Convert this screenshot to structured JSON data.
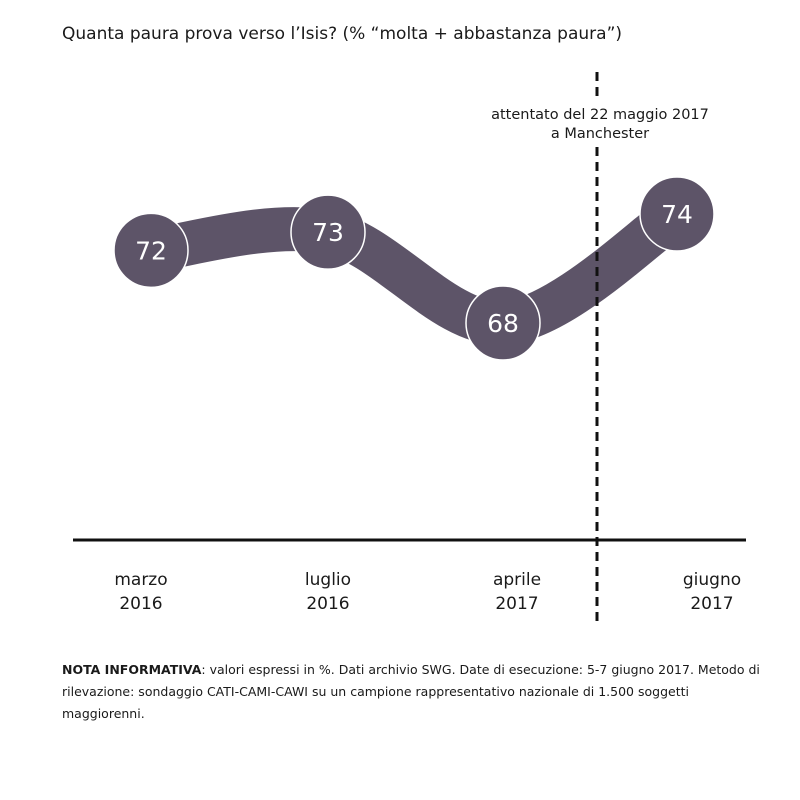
{
  "chart_data": {
    "type": "line",
    "title": "Quanta paura prova verso l’Isis? (% “molta + abbastanza paura”)",
    "categories": [
      {
        "line1": "marzo",
        "line2": "2016"
      },
      {
        "line1": "luglio",
        "line2": "2016"
      },
      {
        "line1": "aprile",
        "line2": "2017"
      },
      {
        "line1": "giugno",
        "line2": "2017"
      }
    ],
    "values": [
      72,
      73,
      68,
      74
    ],
    "data_labels": [
      "72",
      "73",
      "68",
      "74"
    ],
    "annotation": {
      "line1": "attentato del 22 maggio 2017",
      "line2": "a Manchester",
      "position": "between aprile 2017 and giugno 2017",
      "style": "dashed vertical line"
    },
    "series_color": "#5d5468",
    "grid": false,
    "legend": "none"
  },
  "note": {
    "label": "NOTA INFORMATIVA",
    "text": ": valori espressi in %. Dati archivio SWG. Date di esecuzione: 5-7 giugno 2017. Metodo di rilevazione: sondaggio CATI-CAMI-CAWI su un campione rappresentativo nazionale di 1.500 soggetti maggiorenni."
  }
}
